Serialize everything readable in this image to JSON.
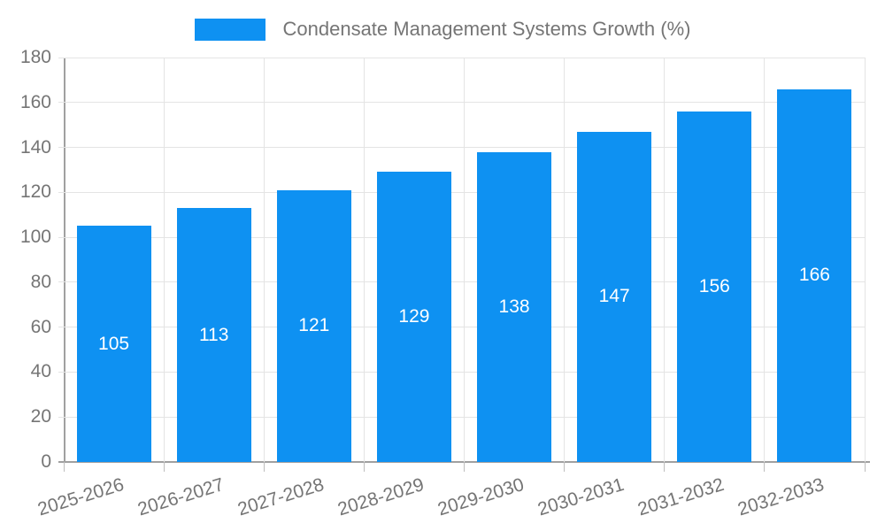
{
  "chart_data": {
    "type": "bar",
    "title": "Condensate Management Systems Growth (%)",
    "categories": [
      "2025-2026",
      "2026-2027",
      "2027-2028",
      "2028-2029",
      "2029-2030",
      "2030-2031",
      "2031-2032",
      "2032-2033"
    ],
    "values": [
      105,
      113,
      121,
      129,
      138,
      147,
      156,
      166
    ],
    "xlabel": "",
    "ylabel": "",
    "ylim": [
      0,
      180
    ],
    "yticks": [
      0,
      20,
      40,
      60,
      80,
      100,
      120,
      140,
      160,
      180
    ],
    "grid": true,
    "legend_position": "top",
    "bar_color": "#0e91f2",
    "bar_label_color": "#ffffff",
    "grid_color": "#e4e4e4",
    "axis_color": "#a0a0a0",
    "tick_mark_color": "#bdbdbd",
    "text_color": "#757575"
  }
}
